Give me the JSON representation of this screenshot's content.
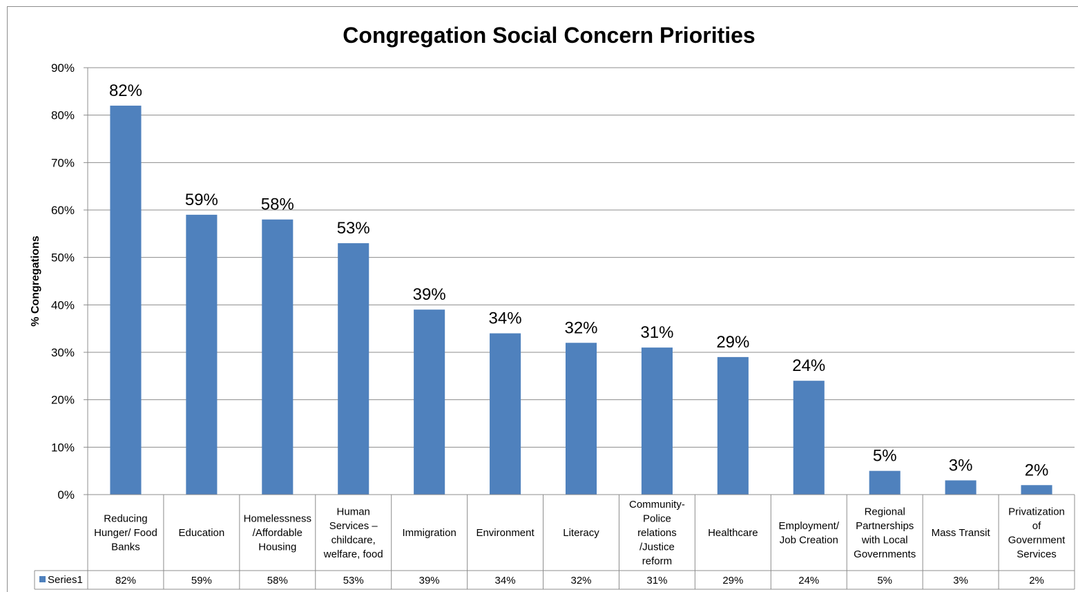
{
  "chart_data": {
    "type": "bar",
    "title": "Congregation Social Concern Priorities",
    "xlabel": "",
    "ylabel": "% Congregations",
    "ylim": [
      0,
      90
    ],
    "y_ticks": [
      "0%",
      "10%",
      "20%",
      "30%",
      "40%",
      "50%",
      "60%",
      "70%",
      "80%",
      "90%"
    ],
    "grid": true,
    "legend_position": "data-table",
    "categories": [
      [
        "Reducing",
        "Hunger/ Food",
        "Banks"
      ],
      [
        "Education"
      ],
      [
        "Homelessness",
        "/Affordable",
        "Housing"
      ],
      [
        "Human",
        "Services –",
        "childcare,",
        "welfare, food"
      ],
      [
        "Immigration"
      ],
      [
        "Environment"
      ],
      [
        "Literacy"
      ],
      [
        "Community-",
        "Police",
        "relations",
        "/Justice",
        "reform"
      ],
      [
        "Healthcare"
      ],
      [
        "Employment/",
        "Job Creation"
      ],
      [
        "Regional",
        "Partnerships",
        "with Local",
        "Governments"
      ],
      [
        "Mass Transit"
      ],
      [
        "Privatization",
        "of",
        "Government",
        "Services"
      ]
    ],
    "series": [
      {
        "name": "Series1",
        "values": [
          82,
          59,
          58,
          53,
          39,
          34,
          32,
          31,
          29,
          24,
          5,
          3,
          2
        ],
        "labels": [
          "82%",
          "59%",
          "58%",
          "53%",
          "39%",
          "34%",
          "32%",
          "31%",
          "29%",
          "24%",
          "5%",
          "3%",
          "2%"
        ],
        "color": "#4f81bd"
      }
    ],
    "colors": {
      "bar": "#4f81bd",
      "grid": "#8c8c8c",
      "axis": "#8c8c8c",
      "text": "#000000"
    }
  }
}
